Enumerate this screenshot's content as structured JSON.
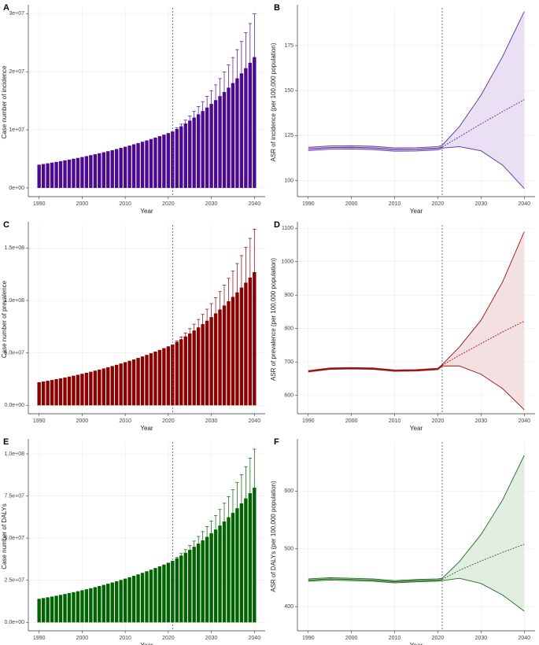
{
  "chart_data": [
    {
      "type": "bar",
      "panel_label": "A",
      "xlabel": "Year",
      "ylabel": "Case number of incidence",
      "color": "#4b0a8f",
      "vline": 2021,
      "x": [
        1990,
        1991,
        1992,
        1993,
        1994,
        1995,
        1996,
        1997,
        1998,
        1999,
        2000,
        2001,
        2002,
        2003,
        2004,
        2005,
        2006,
        2007,
        2008,
        2009,
        2010,
        2011,
        2012,
        2013,
        2014,
        2015,
        2016,
        2017,
        2018,
        2019,
        2020,
        2021,
        2022,
        2023,
        2024,
        2025,
        2026,
        2027,
        2028,
        2029,
        2030,
        2031,
        2032,
        2033,
        2034,
        2035,
        2036,
        2037,
        2038,
        2039,
        2040
      ],
      "values": [
        4000000.0,
        4120000.0,
        4240000.0,
        4360000.0,
        4480000.0,
        4610000.0,
        4750000.0,
        4880000.0,
        5030000.0,
        5170000.0,
        5320000.0,
        5480000.0,
        5640000.0,
        5800000.0,
        5970000.0,
        6140000.0,
        6320000.0,
        6500000.0,
        6690000.0,
        6890000.0,
        7090000.0,
        7290000.0,
        7510000.0,
        7720000.0,
        7950000.0,
        8180000.0,
        8420000.0,
        8660000.0,
        8910000.0,
        9170000.0,
        9440000.0,
        9710000.0,
        10150000.0,
        10610000.0,
        11090000.0,
        11590000.0,
        12120000.0,
        12670000.0,
        13240000.0,
        13840000.0,
        14470000.0,
        15120000.0,
        15810000.0,
        16520000.0,
        17270000.0,
        18050000.0,
        18870000.0,
        19730000.0,
        20620000.0,
        21550000.0,
        22530000.0
      ],
      "upper": [
        null,
        null,
        null,
        null,
        null,
        null,
        null,
        null,
        null,
        null,
        null,
        null,
        null,
        null,
        null,
        null,
        null,
        null,
        null,
        null,
        null,
        null,
        null,
        null,
        null,
        null,
        null,
        null,
        null,
        null,
        null,
        null,
        10330000.0,
        10980000.0,
        11670000.0,
        12400000.0,
        13170000.0,
        13990000.0,
        14860000.0,
        15760000.0,
        16740000.0,
        17750000.0,
        18830000.0,
        19970000.0,
        21170000.0,
        22450000.0,
        23800000.0,
        25210000.0,
        26720000.0,
        28300000.0,
        29960000.0
      ],
      "xlim": [
        1987.5,
        2042.5
      ],
      "xticks": [
        1990,
        2000,
        2010,
        2020,
        2030,
        2040
      ],
      "ylim": [
        -1500000.0,
        31000000.0
      ],
      "yticks": [
        {
          "value": 0,
          "label": "0e+00"
        },
        {
          "value": 10000000.0,
          "label": "1e+07"
        },
        {
          "value": 20000000.0,
          "label": "2e+07"
        },
        {
          "value": 30000000.0,
          "label": "3e+07"
        }
      ]
    },
    {
      "type": "line",
      "panel_label": "B",
      "xlabel": "Year",
      "ylabel": "ASR of incidence (per 100,000 population)",
      "color": "#5b2c9e",
      "band_color": "#e9e0f3",
      "vline": 2021,
      "x": [
        1990,
        1995,
        2000,
        2005,
        2010,
        2015,
        2020,
        2021,
        2025,
        2030,
        2035,
        2040
      ],
      "fitted": [
        117.5,
        118.3,
        118.4,
        118.1,
        117.2,
        117.3,
        117.9,
        118.6,
        null,
        null,
        null,
        null
      ],
      "projected": [
        null,
        null,
        null,
        null,
        null,
        null,
        null,
        118.6,
        124.3,
        131.5,
        138.3,
        145.0
      ],
      "lower": [
        116.6,
        117.4,
        117.5,
        117.2,
        116.3,
        116.4,
        117.0,
        118.0,
        118.8,
        116.5,
        108.5,
        95.5
      ],
      "upper": [
        118.4,
        119.2,
        119.3,
        119.0,
        118.1,
        118.2,
        118.8,
        119.5,
        130.0,
        147.5,
        169.0,
        194.0
      ],
      "xlim": [
        1987.5,
        2042.5
      ],
      "xticks": [
        1990,
        2000,
        2010,
        2020,
        2030,
        2040
      ],
      "ylim": [
        91,
        196
      ],
      "yticks": [
        100,
        125,
        150,
        175
      ]
    },
    {
      "type": "bar",
      "panel_label": "C",
      "xlabel": "Year",
      "ylabel": "Case number of prevalence",
      "color": "#8b0000",
      "vline": 2021,
      "x": [
        1990,
        1991,
        1992,
        1993,
        1994,
        1995,
        1996,
        1997,
        1998,
        1999,
        2000,
        2001,
        2002,
        2003,
        2004,
        2005,
        2006,
        2007,
        2008,
        2009,
        2010,
        2011,
        2012,
        2013,
        2014,
        2015,
        2016,
        2017,
        2018,
        2019,
        2020,
        2021,
        2022,
        2023,
        2024,
        2025,
        2026,
        2027,
        2028,
        2029,
        2030,
        2031,
        2032,
        2033,
        2034,
        2035,
        2036,
        2037,
        2038,
        2039,
        2040
      ],
      "values": [
        22000000.0,
        22700000.0,
        23420000.0,
        24170000.0,
        24940000.0,
        25730000.0,
        26550000.0,
        27390000.0,
        28260000.0,
        29160000.0,
        30090000.0,
        31040000.0,
        32030000.0,
        33050000.0,
        34100000.0,
        35180000.0,
        36300000.0,
        37460000.0,
        38650000.0,
        39880000.0,
        41150000.0,
        42450000.0,
        43800000.0,
        45200000.0,
        46630000.0,
        48120000.0,
        49650000.0,
        51230000.0,
        52860000.0,
        54540000.0,
        56270000.0,
        58060000.0,
        60500000.0,
        63050000.0,
        65700000.0,
        68470000.0,
        71350000.0,
        74350000.0,
        77480000.0,
        80740000.0,
        84140000.0,
        87680000.0,
        91370000.0,
        95210000.0,
        99220000.0,
        103400000.0,
        107700000.0,
        112300000.0,
        117000000.0,
        121900000.0,
        127000000.0
      ],
      "upper": [
        null,
        null,
        null,
        null,
        null,
        null,
        null,
        null,
        null,
        null,
        null,
        null,
        null,
        null,
        null,
        null,
        null,
        null,
        null,
        null,
        null,
        null,
        null,
        null,
        null,
        null,
        null,
        null,
        null,
        null,
        null,
        null,
        61530000.0,
        65190000.0,
        69050000.0,
        73130000.0,
        77410000.0,
        81930000.0,
        86700000.0,
        91720000.0,
        97010000.0,
        102600000.0,
        108500000.0,
        114600000.0,
        121100000.0,
        128000000.0,
        135200000.0,
        142800000.0,
        150800000.0,
        159200000.0,
        168000000.0
      ],
      "xlim": [
        1987.5,
        2042.5
      ],
      "xticks": [
        1990,
        2000,
        2010,
        2020,
        2030,
        2040
      ],
      "ylim": [
        -8000000.0,
        172000000.0
      ],
      "yticks": [
        {
          "value": 0,
          "label": "0.0e+00"
        },
        {
          "value": 50000000.0,
          "label": "5.0e+07"
        },
        {
          "value": 100000000.0,
          "label": "1.0e+08"
        },
        {
          "value": 150000000.0,
          "label": "1.5e+08"
        }
      ]
    },
    {
      "type": "line",
      "panel_label": "D",
      "xlabel": "Year",
      "ylabel": "ASR of prevalence (per 100,000 population)",
      "color": "#9b1010",
      "band_color": "#f3e1e1",
      "vline": 2021,
      "x": [
        1990,
        1995,
        2000,
        2005,
        2010,
        2015,
        2020,
        2021,
        2025,
        2030,
        2035,
        2040
      ],
      "fitted": [
        672,
        680,
        681,
        680,
        674,
        675,
        679,
        690,
        null,
        null,
        null,
        null
      ],
      "projected": [
        null,
        null,
        null,
        null,
        null,
        null,
        null,
        690,
        720,
        755,
        790,
        822
      ],
      "lower": [
        670,
        678,
        679,
        678,
        672,
        673,
        677,
        688,
        688,
        663,
        620,
        557
      ],
      "upper": [
        674,
        682,
        683,
        682,
        676,
        677,
        681,
        692,
        745,
        825,
        940,
        1090
      ],
      "xlim": [
        1987.5,
        2042.5
      ],
      "xticks": [
        1990,
        2000,
        2010,
        2020,
        2030,
        2040
      ],
      "ylim": [
        545,
        1110
      ],
      "yticks": [
        600,
        700,
        800,
        900,
        1000,
        1100
      ]
    },
    {
      "type": "bar",
      "panel_label": "E",
      "xlabel": "Year",
      "ylabel": "Case number of DALYs",
      "color": "#006400",
      "vline": 2021,
      "x": [
        1990,
        1991,
        1992,
        1993,
        1994,
        1995,
        1996,
        1997,
        1998,
        1999,
        2000,
        2001,
        2002,
        2003,
        2004,
        2005,
        2006,
        2007,
        2008,
        2009,
        2010,
        2011,
        2012,
        2013,
        2014,
        2015,
        2016,
        2017,
        2018,
        2019,
        2020,
        2021,
        2022,
        2023,
        2024,
        2025,
        2026,
        2027,
        2028,
        2029,
        2030,
        2031,
        2032,
        2033,
        2034,
        2035,
        2036,
        2037,
        2038,
        2039,
        2040
      ],
      "values": [
        14000000.0,
        14440000.0,
        14890000.0,
        15360000.0,
        15840000.0,
        16340000.0,
        16850000.0,
        17380000.0,
        17930000.0,
        18490000.0,
        19070000.0,
        19670000.0,
        20290000.0,
        20920000.0,
        21580000.0,
        22260000.0,
        22960000.0,
        23680000.0,
        24420000.0,
        25190000.0,
        25980000.0,
        26790000.0,
        27630000.0,
        28500000.0,
        29400000.0,
        30320000.0,
        31270000.0,
        32250000.0,
        33260000.0,
        34310000.0,
        35390000.0,
        36500000.0,
        38040000.0,
        39640000.0,
        41310000.0,
        43050000.0,
        44860000.0,
        46750000.0,
        48710000.0,
        50760000.0,
        52900000.0,
        55130000.0,
        57440000.0,
        59860000.0,
        62380000.0,
        65000000.0,
        67740000.0,
        70590000.0,
        73560000.0,
        76660000.0,
        79880000.0
      ],
      "upper": [
        null,
        null,
        null,
        null,
        null,
        null,
        null,
        null,
        null,
        null,
        null,
        null,
        null,
        null,
        null,
        null,
        null,
        null,
        null,
        null,
        null,
        null,
        null,
        null,
        null,
        null,
        null,
        null,
        null,
        null,
        null,
        null,
        38610000.0,
        40840000.0,
        43180000.0,
        45650000.0,
        48250000.0,
        50990000.0,
        53860000.0,
        56890000.0,
        60090000.0,
        63450000.0,
        66980000.0,
        70710000.0,
        74620000.0,
        78740000.0,
        83080000.0,
        87640000.0,
        92440000.0,
        97500000.0,
        102800000.0
      ],
      "xlim": [
        1987.5,
        2042.5
      ],
      "xticks": [
        1990,
        2000,
        2010,
        2020,
        2030,
        2040
      ],
      "ylim": [
        -5000000.0,
        107000000.0
      ],
      "yticks": [
        {
          "value": 0,
          "label": "0.0e+00"
        },
        {
          "value": 25000000.0,
          "label": "2.5e+07"
        },
        {
          "value": 50000000.0,
          "label": "5.0e+07"
        },
        {
          "value": 75000000.0,
          "label": "7.5e+07"
        },
        {
          "value": 100000000.0,
          "label": "1.0e+08"
        }
      ]
    },
    {
      "type": "line",
      "panel_label": "F",
      "xlabel": "Year",
      "ylabel": "ASR of DALYs (per 100,000 population)",
      "color": "#1f6b1f",
      "band_color": "#e3eee3",
      "vline": 2021,
      "x": [
        1990,
        1995,
        2000,
        2005,
        2010,
        2015,
        2020,
        2021,
        2025,
        2030,
        2035,
        2040
      ],
      "fitted": [
        446,
        448,
        447,
        446,
        443,
        445,
        446,
        447,
        null,
        null,
        null,
        null
      ],
      "projected": [
        null,
        null,
        null,
        null,
        null,
        null,
        null,
        447,
        463,
        479,
        494,
        508
      ],
      "lower": [
        444,
        446,
        445,
        444,
        441,
        443,
        444,
        445,
        449,
        440,
        420,
        392
      ],
      "upper": [
        448,
        450,
        449,
        448,
        445,
        447,
        448,
        449,
        478,
        525,
        585,
        662
      ],
      "xlim": [
        1987.5,
        2042.5
      ],
      "xticks": [
        1990,
        2000,
        2010,
        2020,
        2030,
        2040
      ],
      "ylim": [
        358,
        685
      ],
      "yticks": [
        400,
        500,
        600
      ]
    }
  ]
}
